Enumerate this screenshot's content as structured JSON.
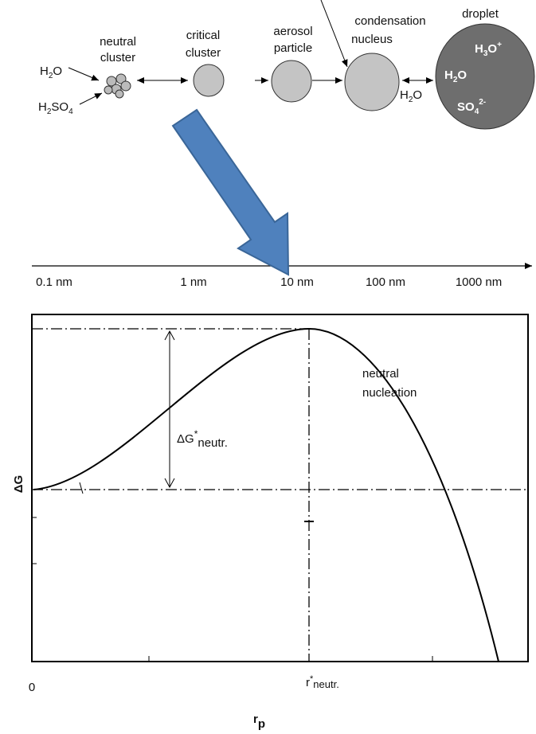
{
  "stages": {
    "neutral_cluster": [
      "neutral",
      "cluster"
    ],
    "critical_cluster": [
      "critical",
      "cluster"
    ],
    "aerosol_particle": [
      "aerosol",
      "particle"
    ],
    "condensation_nucleus": [
      "condensation",
      "nucleus"
    ],
    "droplet": "droplet"
  },
  "species": {
    "h2o_in": [
      "H",
      "2",
      "O"
    ],
    "h2so4_in": [
      "H",
      "2",
      "SO",
      "4"
    ],
    "h2o_exchange": [
      "H",
      "2",
      "O"
    ],
    "h3o_plus": [
      "H",
      "3",
      "O",
      "+"
    ],
    "h2o_droplet": [
      "H",
      "2",
      "O"
    ],
    "so4": [
      "SO",
      "4",
      "2-"
    ]
  },
  "scale": [
    "0.1 nm",
    "1 nm",
    "10 nm",
    "100 nm",
    "1000 nm"
  ],
  "graph": {
    "y_label": "ΔG",
    "x_label": [
      "r",
      "p"
    ],
    "origin": "0",
    "r_star": [
      "r",
      "*",
      "neutr."
    ],
    "delta_g_star": [
      "ΔG",
      "*",
      "neutr."
    ],
    "curve_label": [
      "neutral",
      "nucleation"
    ]
  }
}
